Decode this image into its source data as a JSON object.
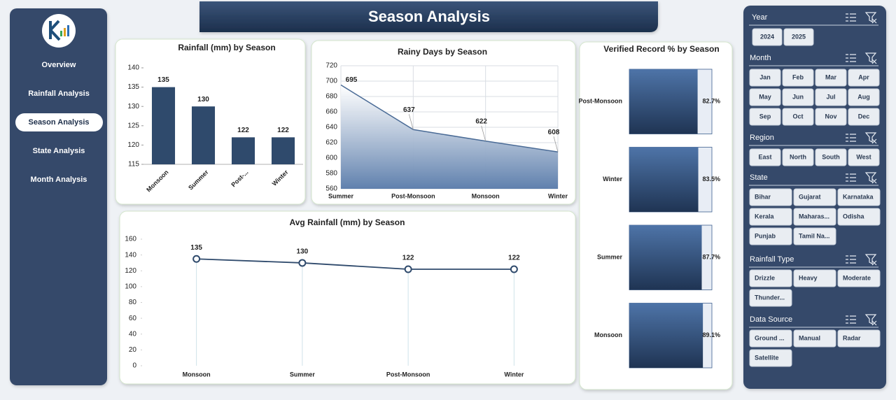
{
  "header": {
    "title": "Season Analysis"
  },
  "nav": {
    "items": [
      "Overview",
      "Rainfall Analysis",
      "Season Analysis",
      "State Analysis",
      "Month Analysis"
    ],
    "active": 2
  },
  "slicers": [
    {
      "title": "Year",
      "items": [
        "2024",
        "2025"
      ]
    },
    {
      "title": "Month",
      "items": [
        "Jan",
        "Feb",
        "Mar",
        "Apr",
        "May",
        "Jun",
        "Jul",
        "Aug",
        "Sep",
        "Oct",
        "Nov",
        "Dec"
      ]
    },
    {
      "title": "Region",
      "items": [
        "East",
        "North",
        "South",
        "West"
      ]
    },
    {
      "title": "State",
      "items": [
        "Bihar",
        "Gujarat",
        "Karnataka",
        "Kerala",
        "Maharas...",
        "Odisha",
        "Punjab",
        "Tamil Na..."
      ]
    },
    {
      "title": "Rainfall Type",
      "items": [
        "Drizzle",
        "Heavy",
        "Moderate",
        "Thunder..."
      ]
    },
    {
      "title": "Data Source",
      "items": [
        "Ground ...",
        "Manual",
        "Radar",
        "Satellite"
      ]
    }
  ],
  "chart_data": [
    {
      "type": "bar",
      "title": "Rainfall (mm) by Season",
      "categories": [
        "Monsoon",
        "Summer",
        "Post-...",
        "Winter"
      ],
      "values": [
        135,
        130,
        122,
        122
      ],
      "color": "#2f4a6c",
      "ylim": [
        115,
        140
      ],
      "yticks": [
        115,
        120,
        125,
        130,
        135,
        140
      ],
      "grid": false
    },
    {
      "type": "area",
      "title": "Rainy Days by Season",
      "categories": [
        "Summer",
        "Post-Monsoon",
        "Monsoon",
        "Winter"
      ],
      "values": [
        695,
        637,
        622,
        608
      ],
      "color": "#4a6b96",
      "ylim": [
        560,
        720
      ],
      "yticks": [
        560,
        580,
        600,
        620,
        640,
        660,
        680,
        700,
        720
      ],
      "grid": true
    },
    {
      "type": "line",
      "title": "Avg Rainfall (mm) by Season",
      "categories": [
        "Monsoon",
        "Summer",
        "Post-Monsoon",
        "Winter"
      ],
      "values": [
        135,
        130,
        122,
        122
      ],
      "color": "#2f4a6c",
      "ylim": [
        0,
        160
      ],
      "yticks": [
        0,
        20,
        40,
        60,
        80,
        100,
        120,
        140,
        160
      ],
      "grid": false
    },
    {
      "type": "hbar",
      "title": "Verified Record % by Season",
      "categories": [
        "Post-Monsoon",
        "Winter",
        "Summer",
        "Monsoon"
      ],
      "values": [
        82.7,
        83.5,
        87.7,
        89.1
      ],
      "value_labels": [
        "82.7%",
        "83.5%",
        "87.7%",
        "89.1%"
      ],
      "color": "#3b5b86",
      "xlim": [
        0,
        100
      ]
    }
  ]
}
